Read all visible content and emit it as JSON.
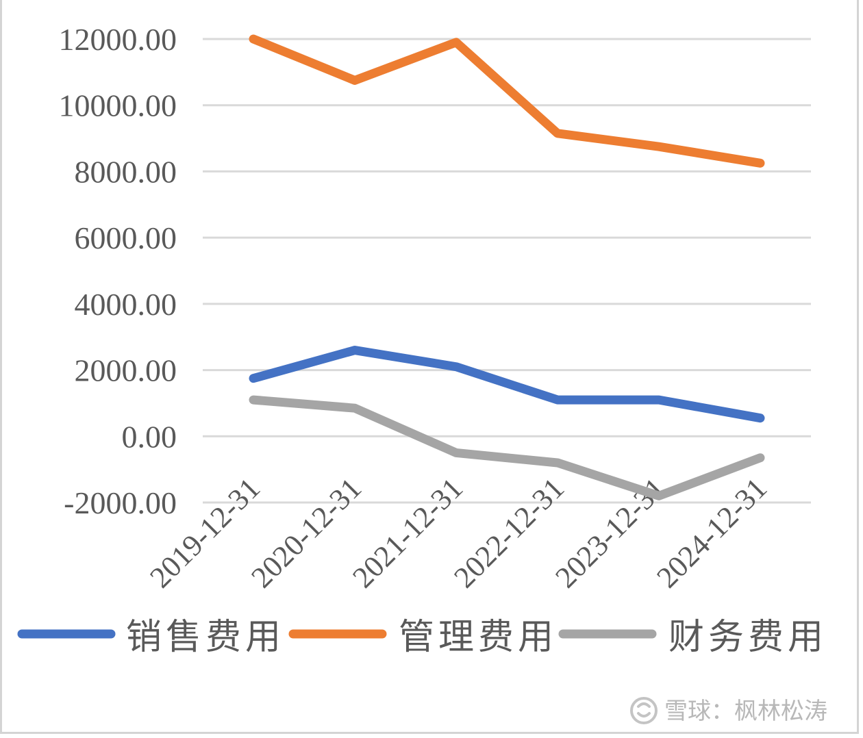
{
  "chart_data": {
    "type": "line",
    "categories": [
      "2019-12-31",
      "2020-12-31",
      "2021-12-31",
      "2022-12-31",
      "2023-12-31",
      "2024-12-31"
    ],
    "series": [
      {
        "name": "销售费用",
        "color": "#4472C4",
        "values": [
          1750,
          2600,
          2100,
          1100,
          1100,
          550
        ]
      },
      {
        "name": "管理费用",
        "color": "#ED7D31",
        "values": [
          12000,
          10750,
          11900,
          9150,
          8750,
          8250
        ]
      },
      {
        "name": "财务费用",
        "color": "#A5A5A5",
        "values": [
          1100,
          850,
          -500,
          -800,
          -1800,
          -650
        ]
      }
    ],
    "ylim": [
      -2000,
      12000
    ],
    "yticks": [
      "12000.00",
      "10000.00",
      "8000.00",
      "6000.00",
      "4000.00",
      "2000.00",
      "0.00",
      "-2000.00"
    ],
    "grid": true,
    "legend_position": "bottom"
  },
  "watermark": {
    "text": "雪球：枫林松涛",
    "icon": "snowball-logo-icon"
  }
}
